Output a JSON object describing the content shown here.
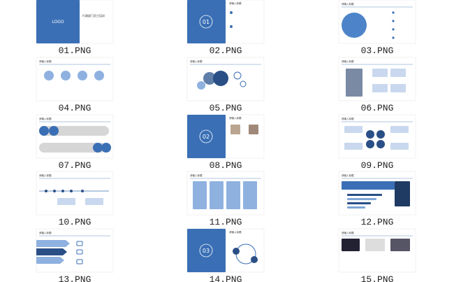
{
  "files": [
    {
      "label": "01.PNG",
      "texts": [
        "LOGO",
        "行政部门员工培训"
      ]
    },
    {
      "label": "02.PNG",
      "texts": [
        "01",
        "请输入标题"
      ]
    },
    {
      "label": "03.PNG",
      "texts": [
        "请输入标题"
      ]
    },
    {
      "label": "04.PNG",
      "texts": [
        "请输入标题"
      ]
    },
    {
      "label": "05.PNG",
      "texts": [
        "请输入标题"
      ]
    },
    {
      "label": "06.PNG",
      "texts": [
        "请输入标题"
      ]
    },
    {
      "label": "07.PNG",
      "texts": [
        "请输入标题"
      ]
    },
    {
      "label": "08.PNG",
      "texts": [
        "02",
        "请输入标题"
      ]
    },
    {
      "label": "09.PNG",
      "texts": [
        "请输入标题"
      ]
    },
    {
      "label": "10.PNG",
      "texts": [
        "请输入标题"
      ]
    },
    {
      "label": "11.PNG",
      "texts": [
        "请输入标题"
      ]
    },
    {
      "label": "12.PNG",
      "texts": [
        "请输入标题"
      ]
    },
    {
      "label": "13.PNG",
      "texts": [
        "请输入标题"
      ]
    },
    {
      "label": "14.PNG",
      "texts": [
        "03",
        "请输入标题"
      ]
    },
    {
      "label": "15.PNG",
      "texts": [
        "请输入标题"
      ]
    }
  ]
}
